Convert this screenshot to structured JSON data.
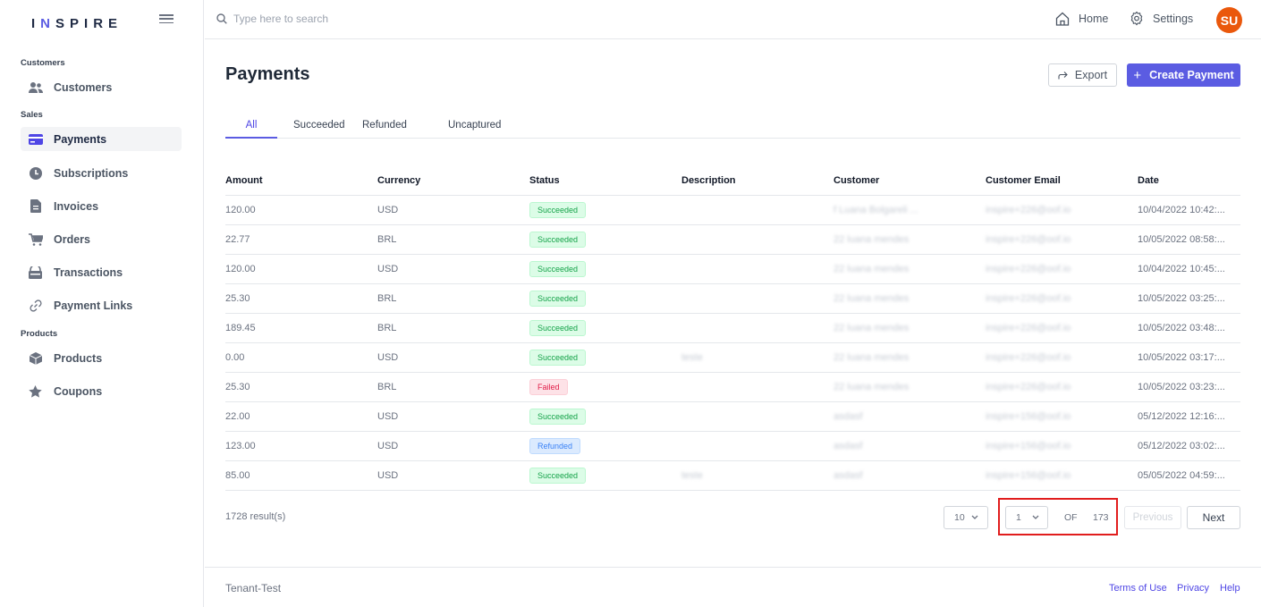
{
  "brand": {
    "name_pre": "I",
    "name_n": "N",
    "name_post": "SPIRE"
  },
  "colors": {
    "accent": "#5b5ce2",
    "avatar": "#ea580c",
    "highlight": "#e11d1d"
  },
  "search": {
    "placeholder": "Type here to search"
  },
  "top_nav": {
    "home": "Home",
    "settings": "Settings",
    "avatar_initials": "SU"
  },
  "sidebar": {
    "sections": [
      {
        "label": "Customers"
      },
      {
        "label": "Sales"
      },
      {
        "label": "Products"
      }
    ],
    "items": [
      {
        "label": "Customers",
        "icon": "users-icon"
      },
      {
        "label": "Payments",
        "icon": "credit-card-icon",
        "active": true
      },
      {
        "label": "Subscriptions",
        "icon": "clock-icon"
      },
      {
        "label": "Invoices",
        "icon": "document-icon"
      },
      {
        "label": "Orders",
        "icon": "cart-icon"
      },
      {
        "label": "Transactions",
        "icon": "wallet-icon"
      },
      {
        "label": "Payment Links",
        "icon": "link-icon"
      },
      {
        "label": "Products",
        "icon": "box-icon"
      },
      {
        "label": "Coupons",
        "icon": "star-icon"
      }
    ]
  },
  "page": {
    "title": "Payments",
    "export_label": "Export",
    "create_label": "Create Payment",
    "create_plus": "+"
  },
  "tabs": [
    "All",
    "Succeeded",
    "Refunded",
    "Uncaptured"
  ],
  "table": {
    "columns": [
      "Amount",
      "Currency",
      "Status",
      "Description",
      "Customer",
      "Customer Email",
      "Date"
    ],
    "rows": [
      {
        "amount": "120.00",
        "currency": "USD",
        "status": "Succeeded",
        "description": "",
        "customer": "f Luana Bolgareli ...",
        "email": "inspire+226@oof.io",
        "date": "10/04/2022 10:42:..."
      },
      {
        "amount": "22.77",
        "currency": "BRL",
        "status": "Succeeded",
        "description": "",
        "customer": "22 luana mendes",
        "email": "inspire+226@oof.io",
        "date": "10/05/2022 08:58:..."
      },
      {
        "amount": "120.00",
        "currency": "USD",
        "status": "Succeeded",
        "description": "",
        "customer": "22 luana mendes",
        "email": "inspire+226@oof.io",
        "date": "10/04/2022 10:45:..."
      },
      {
        "amount": "25.30",
        "currency": "BRL",
        "status": "Succeeded",
        "description": "",
        "customer": "22 luana mendes",
        "email": "inspire+226@oof.io",
        "date": "10/05/2022 03:25:..."
      },
      {
        "amount": "189.45",
        "currency": "BRL",
        "status": "Succeeded",
        "description": "",
        "customer": "22 luana mendes",
        "email": "inspire+226@oof.io",
        "date": "10/05/2022 03:48:..."
      },
      {
        "amount": "0.00",
        "currency": "USD",
        "status": "Succeeded",
        "description": "teste",
        "customer": "22 luana mendes",
        "email": "inspire+226@oof.io",
        "date": "10/05/2022 03:17:..."
      },
      {
        "amount": "25.30",
        "currency": "BRL",
        "status": "Failed",
        "description": "",
        "customer": "22 luana mendes",
        "email": "inspire+226@oof.io",
        "date": "10/05/2022 03:23:..."
      },
      {
        "amount": "22.00",
        "currency": "USD",
        "status": "Succeeded",
        "description": "",
        "customer": "asdasf",
        "email": "inspire+156@oof.io",
        "date": "05/12/2022 12:16:..."
      },
      {
        "amount": "123.00",
        "currency": "USD",
        "status": "Refunded",
        "description": "",
        "customer": "asdasf",
        "email": "inspire+156@oof.io",
        "date": "05/12/2022 03:02:..."
      },
      {
        "amount": "85.00",
        "currency": "USD",
        "status": "Succeeded",
        "description": "teste",
        "customer": "asdasf",
        "email": "inspire+156@oof.io",
        "date": "05/05/2022 04:59:..."
      }
    ]
  },
  "pagination": {
    "results": "1728 result(s)",
    "page_size": "10",
    "current_page": "1",
    "of_label": "OF",
    "total_pages": "173",
    "previous_label": "Previous",
    "next_label": "Next"
  },
  "footer": {
    "tenant": "Tenant-Test",
    "links": [
      "Terms of Use",
      "Privacy",
      "Help"
    ]
  }
}
